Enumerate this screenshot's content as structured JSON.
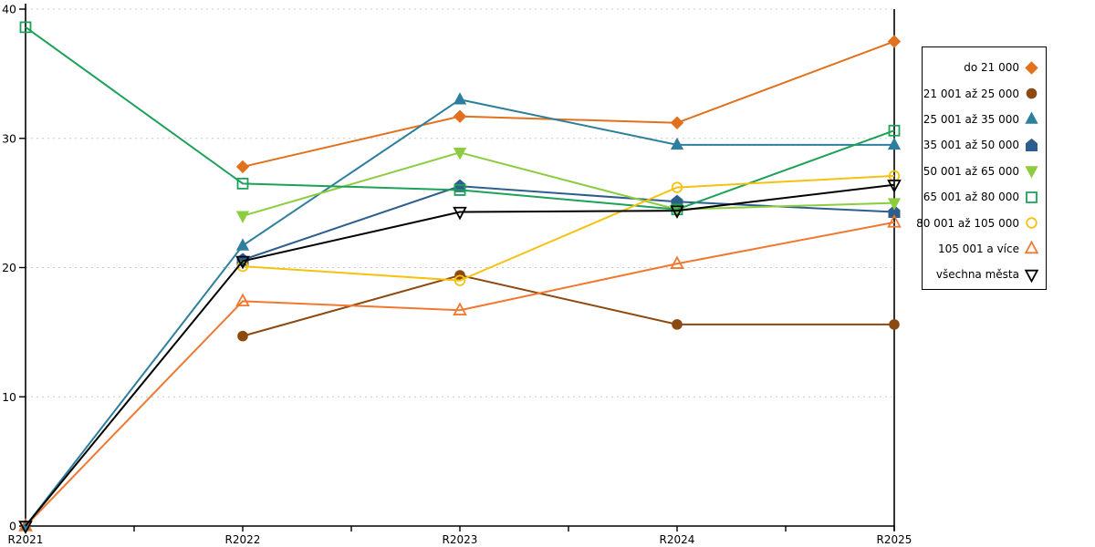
{
  "chart_data": {
    "type": "line",
    "title": "",
    "xlabel": "",
    "ylabel": "",
    "categories": [
      "R2021",
      "R2022",
      "R2023",
      "R2024",
      "R2025"
    ],
    "ylim": [
      0,
      40
    ],
    "yticks": [
      0,
      10,
      20,
      30,
      40
    ],
    "grid": "horizontal-dashed",
    "grid_color": "#c9c9c9",
    "axis_color": "#000000",
    "legend_position": "right",
    "series": [
      {
        "name": "do 21 000",
        "color": "#e2711d",
        "marker": "diamond",
        "fill": "solid",
        "values": [
          null,
          27.8,
          31.7,
          31.2,
          37.5
        ]
      },
      {
        "name": "21 001 až 25 000",
        "color": "#8c4a10",
        "marker": "circle",
        "fill": "solid",
        "values": [
          null,
          14.7,
          19.4,
          15.6,
          15.6
        ]
      },
      {
        "name": "25 001 až 35 000",
        "color": "#2e7f9e",
        "marker": "triangle-up",
        "fill": "solid",
        "values": [
          0,
          21.7,
          33.0,
          29.5,
          29.5
        ]
      },
      {
        "name": "35 001 až 50 000",
        "color": "#2d5e8e",
        "marker": "pentagon",
        "fill": "solid",
        "values": [
          null,
          20.6,
          26.3,
          25.1,
          24.3
        ]
      },
      {
        "name": "50 001 až 65 000",
        "color": "#8ccc3f",
        "marker": "triangle-down",
        "fill": "solid",
        "values": [
          null,
          24.0,
          28.9,
          24.5,
          25.0
        ]
      },
      {
        "name": "65 001 až 80 000",
        "color": "#1ba158",
        "marker": "square",
        "fill": "open",
        "values": [
          38.6,
          26.5,
          26.0,
          24.5,
          30.6
        ]
      },
      {
        "name": "80 001 až 105 000",
        "color": "#f5c211",
        "marker": "circle",
        "fill": "open",
        "values": [
          null,
          20.1,
          19.0,
          26.2,
          27.1
        ]
      },
      {
        "name": "105 001 a více",
        "color": "#f07830",
        "marker": "triangle-up",
        "fill": "open",
        "values": [
          0,
          17.4,
          16.7,
          20.3,
          23.5
        ]
      },
      {
        "name": "všechna města",
        "color": "#000000",
        "marker": "triangle-down",
        "fill": "open",
        "values": [
          0,
          20.5,
          24.3,
          24.4,
          26.4
        ]
      }
    ]
  }
}
